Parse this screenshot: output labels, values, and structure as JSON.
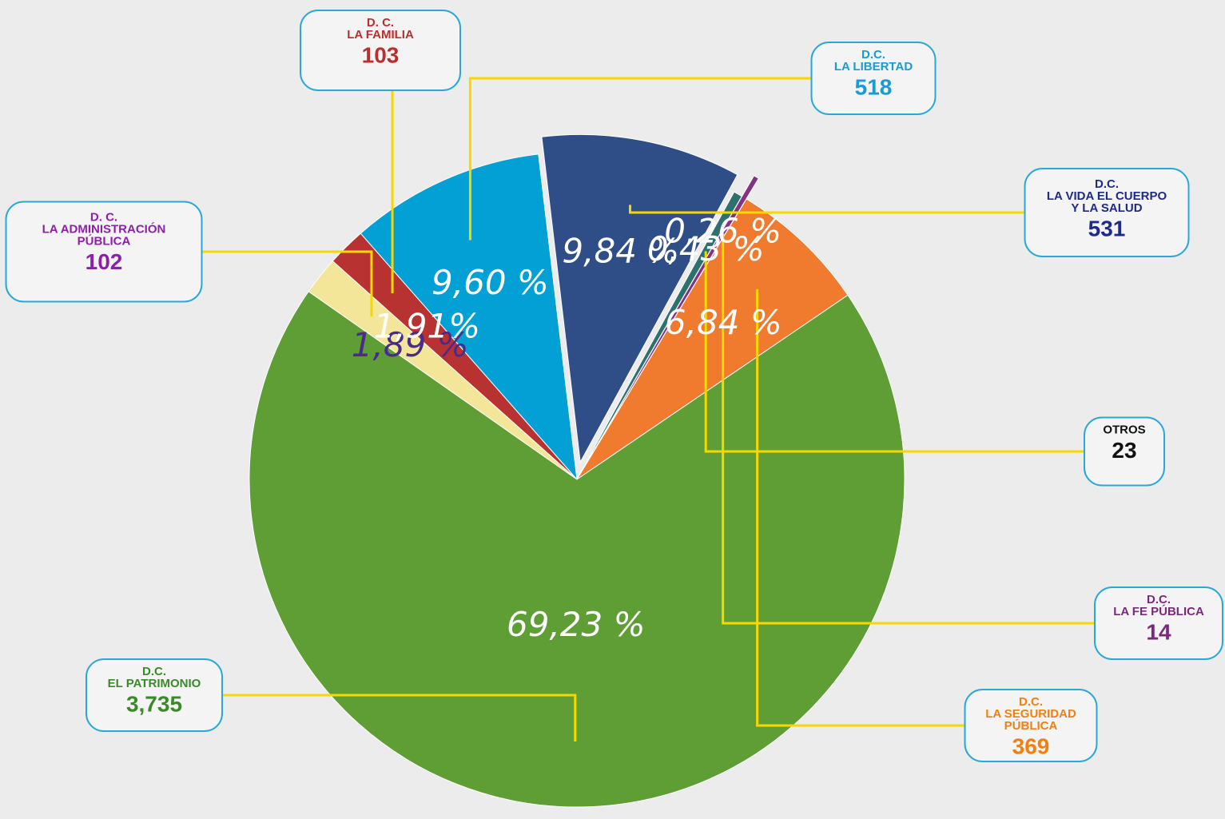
{
  "chart_data": {
    "type": "pie",
    "categories": [
      [
        "D.C.",
        "EL PATRIMONIO"
      ],
      [
        "D. C.",
        "LA ADMINISTRACIÓN",
        "PÚBLICA"
      ],
      [
        "D. C.",
        "LA FAMILIA"
      ],
      [
        "D.C.",
        "LA LIBERTAD"
      ],
      [
        "D.C.",
        "LA VIDA EL CUERPO",
        "Y LA SALUD"
      ],
      [
        "OTROS"
      ],
      [
        "D.C.",
        "LA FE PÚBLICA"
      ],
      [
        "D.C.",
        "LA SEGURIDAD",
        "PÚBLICA"
      ]
    ],
    "values": [
      69.23,
      1.89,
      1.91,
      9.6,
      9.84,
      0.43,
      0.26,
      6.84
    ],
    "value_labels": [
      "69,23 %",
      "1,89 %",
      "1,91%",
      "9,60 %",
      "9,84 %",
      "0,43 %",
      "0,26 %",
      "6,84 %"
    ],
    "counts": [
      {
        "value": 3735,
        "label": "3,735"
      },
      102,
      103,
      518,
      531,
      23,
      14,
      369
    ],
    "colors": [
      "#5e9e35",
      "#f3e699",
      "#b83232",
      "#02a0d4",
      "#2f4d86",
      "#2d716e",
      "#843283",
      "#f07a2e"
    ],
    "label_colors": [
      "#ffffff",
      "#4a2a8a",
      "#ffffff",
      "#ffffff",
      "#ffffff",
      "#ffffff",
      "#ffffff",
      "#ffffff"
    ],
    "text_colors": [
      "#3a8a2a",
      "#8e1fa8",
      "#b8302e",
      "#1a9ad6",
      "#1e2a8a",
      "#111111",
      "#7a2a7a",
      "#f08010"
    ]
  }
}
